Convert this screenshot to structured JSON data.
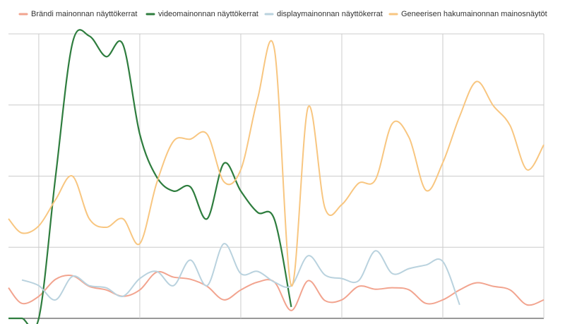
{
  "chart_data": {
    "type": "line",
    "x": [
      -1.8,
      -1,
      0,
      1,
      2,
      3,
      4,
      5,
      6,
      7,
      8,
      9,
      10,
      11,
      12,
      13,
      14,
      15,
      16,
      17,
      18,
      19,
      20,
      21,
      22,
      23,
      24,
      25,
      26,
      27,
      28,
      29,
      30
    ],
    "xlim": [
      -1.8,
      30
    ],
    "xticks": [
      0,
      6,
      12,
      18,
      24,
      30
    ],
    "ylim": [
      0,
      4
    ],
    "yticks": [
      0,
      1,
      2,
      3,
      4
    ],
    "grid": true,
    "series": [
      {
        "name": "Brändi mainonnan näyttökerrat",
        "color": "#f2a48f",
        "values": [
          0.43,
          0.21,
          0.31,
          0.55,
          0.6,
          0.45,
          0.4,
          0.31,
          0.4,
          0.65,
          0.58,
          0.55,
          0.45,
          0.26,
          0.4,
          0.51,
          0.51,
          0.11,
          0.53,
          0.25,
          0.26,
          0.45,
          0.41,
          0.43,
          0.4,
          0.21,
          0.26,
          0.4,
          0.5,
          0.45,
          0.4,
          0.19,
          0.26
        ]
      },
      {
        "name": "videomainonnan näyttökerrat",
        "color": "#2e7d3e",
        "values": [
          0,
          0,
          0,
          2.0,
          3.87,
          3.97,
          3.68,
          3.85,
          2.59,
          1.99,
          1.79,
          1.85,
          1.4,
          2.18,
          1.79,
          1.49,
          1.39,
          0.16,
          null,
          null,
          null,
          null,
          null,
          null,
          null,
          null,
          null,
          null,
          null,
          null,
          null,
          null,
          null
        ]
      },
      {
        "name": "displaymainonnan näyttökerrat",
        "color": "#b9d2de",
        "values": [
          null,
          0.54,
          0.46,
          0.26,
          0.59,
          0.46,
          0.43,
          0.31,
          0.56,
          0.66,
          0.46,
          0.82,
          0.46,
          1.05,
          0.63,
          0.66,
          0.51,
          0.46,
          0.88,
          0.61,
          0.56,
          0.53,
          0.95,
          0.63,
          0.7,
          0.75,
          0.8,
          0.19,
          null,
          null,
          null,
          null,
          null
        ]
      },
      {
        "name": "Geneerisen hakumainonnan mainosnäytöt",
        "color": "#f8c680",
        "values": [
          1.4,
          1.2,
          1.3,
          1.67,
          2.0,
          1.4,
          1.28,
          1.4,
          1.05,
          1.9,
          2.49,
          2.52,
          2.59,
          1.92,
          2.09,
          3.09,
          3.78,
          0.46,
          2.97,
          1.55,
          1.6,
          1.9,
          1.95,
          2.74,
          2.54,
          1.8,
          2.19,
          2.84,
          3.33,
          2.99,
          2.71,
          2.09,
          2.44
        ]
      }
    ]
  }
}
